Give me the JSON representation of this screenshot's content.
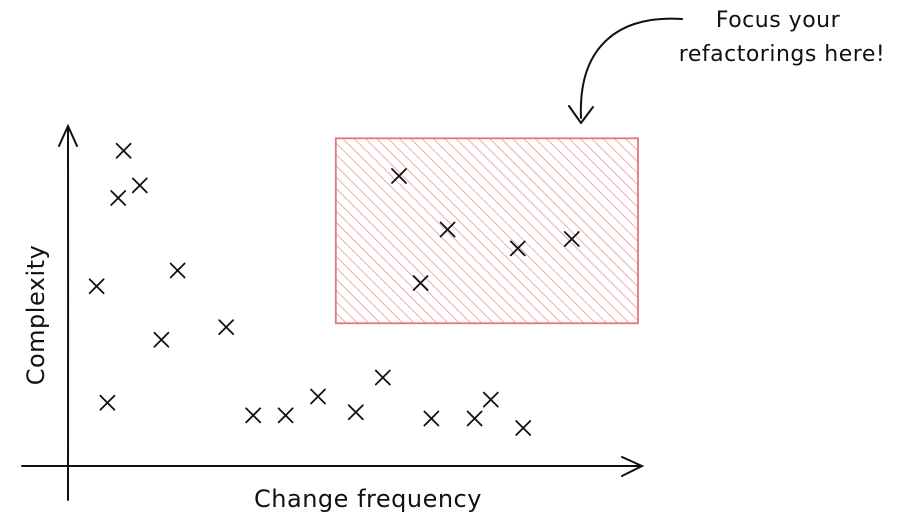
{
  "chart_data": {
    "type": "scatter",
    "xlabel": "Change frequency",
    "ylabel": "Complexity",
    "xlim": [
      0,
      100
    ],
    "ylim": [
      0,
      100
    ],
    "grid": false,
    "annotation": {
      "text_lines": [
        "Focus your",
        "refactorings here!"
      ]
    },
    "highlight_region": {
      "x": [
        47,
        100
      ],
      "y": [
        45,
        98
      ],
      "color": "#e9898c"
    },
    "series": [
      {
        "marker": "x",
        "color": "#111111",
        "points": [
          [
            9,
            95
          ],
          [
            8,
            80
          ],
          [
            12,
            84
          ],
          [
            4,
            52
          ],
          [
            19,
            57
          ],
          [
            16,
            35
          ],
          [
            28,
            39
          ],
          [
            6,
            15
          ],
          [
            33,
            11
          ],
          [
            39,
            11
          ],
          [
            45,
            17
          ],
          [
            52,
            12
          ],
          [
            57,
            23
          ],
          [
            66,
            10
          ],
          [
            74,
            10
          ],
          [
            77,
            16
          ],
          [
            83,
            7
          ],
          [
            60,
            87
          ],
          [
            69,
            70
          ],
          [
            82,
            64
          ],
          [
            92,
            67
          ],
          [
            64,
            53
          ]
        ]
      }
    ]
  }
}
